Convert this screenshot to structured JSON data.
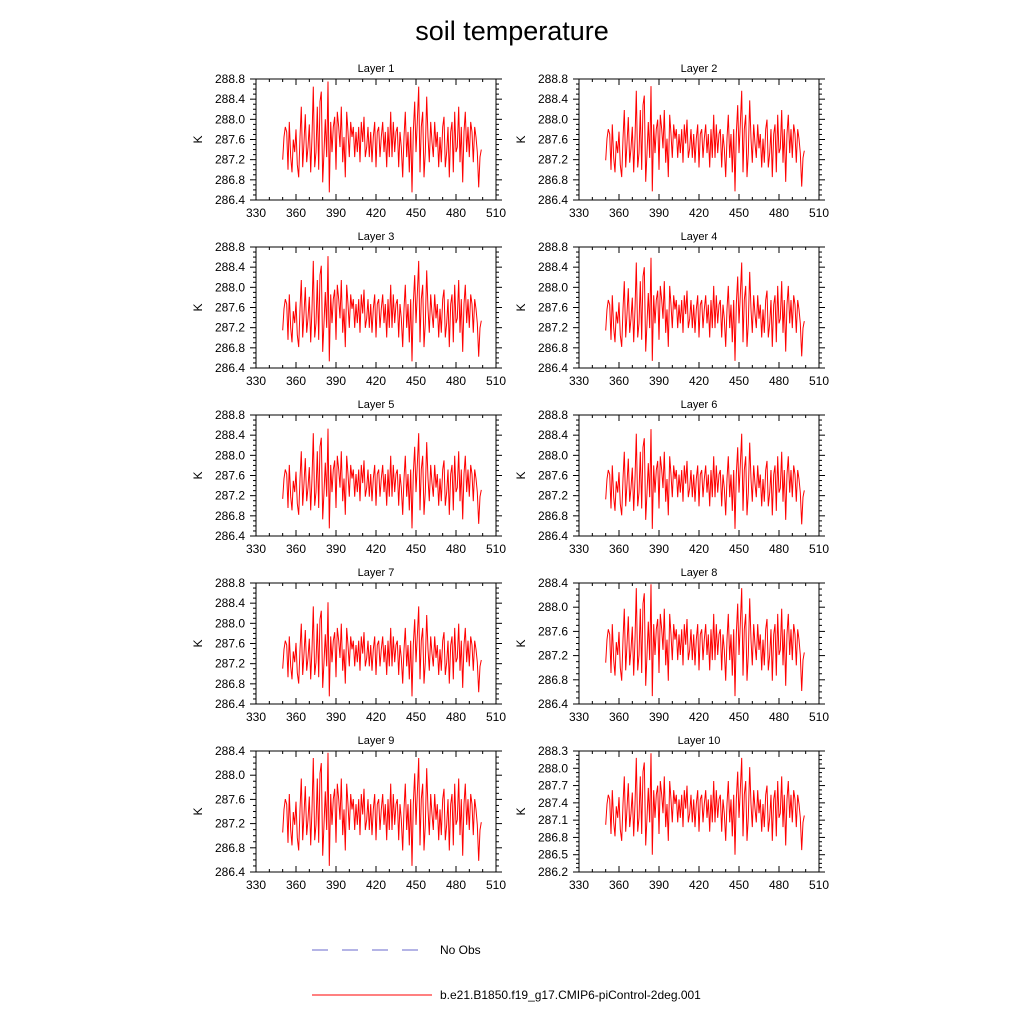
{
  "title": "soil temperature",
  "series_color": "#ff0000",
  "obs_color": "#6a6acd",
  "legend": {
    "obs_label": "No Obs",
    "model_label": "b.e21.B1850.f19_g17.CMIP6-piControl-2deg.001"
  },
  "chart_data": [
    {
      "type": "line",
      "title": "Layer 1",
      "ylabel": "K",
      "xlim": [
        330,
        510
      ],
      "ylim": [
        286.4,
        288.8
      ],
      "xticks": [
        330,
        360,
        390,
        420,
        450,
        480,
        510
      ],
      "yticks": [
        286.4,
        286.8,
        287.2,
        287.6,
        288.0,
        288.4,
        288.8
      ],
      "ytick_labels": [
        "286.4",
        "286.8",
        "287.2",
        "287.6",
        "288.0",
        "288.4",
        "288.8"
      ]
    },
    {
      "type": "line",
      "title": "Layer 2",
      "ylabel": "K",
      "xlim": [
        330,
        510
      ],
      "ylim": [
        286.4,
        288.8
      ],
      "xticks": [
        330,
        360,
        390,
        420,
        450,
        480,
        510
      ],
      "yticks": [
        286.4,
        286.8,
        287.2,
        287.6,
        288.0,
        288.4,
        288.8
      ],
      "ytick_labels": [
        "286.4",
        "286.8",
        "287.2",
        "287.6",
        "288.0",
        "288.4",
        "288.8"
      ]
    },
    {
      "type": "line",
      "title": "Layer 3",
      "ylabel": "K",
      "xlim": [
        330,
        510
      ],
      "ylim": [
        286.4,
        288.8
      ],
      "xticks": [
        330,
        360,
        390,
        420,
        450,
        480,
        510
      ],
      "yticks": [
        286.4,
        286.8,
        287.2,
        287.6,
        288.0,
        288.4,
        288.8
      ],
      "ytick_labels": [
        "286.4",
        "286.8",
        "287.2",
        "287.6",
        "288.0",
        "288.4",
        "288.8"
      ]
    },
    {
      "type": "line",
      "title": "Layer 4",
      "ylabel": "K",
      "xlim": [
        330,
        510
      ],
      "ylim": [
        286.4,
        288.8
      ],
      "xticks": [
        330,
        360,
        390,
        420,
        450,
        480,
        510
      ],
      "yticks": [
        286.4,
        286.8,
        287.2,
        287.6,
        288.0,
        288.4,
        288.8
      ],
      "ytick_labels": [
        "286.4",
        "286.8",
        "287.2",
        "287.6",
        "288.0",
        "288.4",
        "288.8"
      ]
    },
    {
      "type": "line",
      "title": "Layer 5",
      "ylabel": "K",
      "xlim": [
        330,
        510
      ],
      "ylim": [
        286.4,
        288.8
      ],
      "xticks": [
        330,
        360,
        390,
        420,
        450,
        480,
        510
      ],
      "yticks": [
        286.4,
        286.8,
        287.2,
        287.6,
        288.0,
        288.4,
        288.8
      ],
      "ytick_labels": [
        "286.4",
        "286.8",
        "287.2",
        "287.6",
        "288.0",
        "288.4",
        "288.8"
      ]
    },
    {
      "type": "line",
      "title": "Layer 6",
      "ylabel": "K",
      "xlim": [
        330,
        510
      ],
      "ylim": [
        286.4,
        288.8
      ],
      "xticks": [
        330,
        360,
        390,
        420,
        450,
        480,
        510
      ],
      "yticks": [
        286.4,
        286.8,
        287.2,
        287.6,
        288.0,
        288.4,
        288.8
      ],
      "ytick_labels": [
        "286.4",
        "286.8",
        "287.2",
        "287.6",
        "288.0",
        "288.4",
        "288.8"
      ]
    },
    {
      "type": "line",
      "title": "Layer 7",
      "ylabel": "K",
      "xlim": [
        330,
        510
      ],
      "ylim": [
        286.4,
        288.8
      ],
      "xticks": [
        330,
        360,
        390,
        420,
        450,
        480,
        510
      ],
      "yticks": [
        286.4,
        286.8,
        287.2,
        287.6,
        288.0,
        288.4,
        288.8
      ],
      "ytick_labels": [
        "286.4",
        "286.8",
        "287.2",
        "287.6",
        "288.0",
        "288.4",
        "288.8"
      ]
    },
    {
      "type": "line",
      "title": "Layer 8",
      "ylabel": "K",
      "xlim": [
        330,
        510
      ],
      "ylim": [
        286.4,
        288.4
      ],
      "xticks": [
        330,
        360,
        390,
        420,
        450,
        480,
        510
      ],
      "yticks": [
        286.4,
        286.8,
        287.2,
        287.6,
        288.0,
        288.4
      ],
      "ytick_labels": [
        "286.4",
        "286.8",
        "287.2",
        "287.6",
        "288.0",
        "288.4"
      ]
    },
    {
      "type": "line",
      "title": "Layer 9",
      "ylabel": "K",
      "xlim": [
        330,
        510
      ],
      "ylim": [
        286.4,
        288.4
      ],
      "xticks": [
        330,
        360,
        390,
        420,
        450,
        480,
        510
      ],
      "yticks": [
        286.4,
        286.8,
        287.2,
        287.6,
        288.0,
        288.4
      ],
      "ytick_labels": [
        "286.4",
        "286.8",
        "287.2",
        "287.6",
        "288.0",
        "288.4"
      ]
    },
    {
      "type": "line",
      "title": "Layer 10",
      "ylabel": "K",
      "xlim": [
        330,
        510
      ],
      "ylim": [
        286.2,
        288.3
      ],
      "xticks": [
        330,
        360,
        390,
        420,
        450,
        480,
        510
      ],
      "yticks": [
        286.2,
        286.5,
        286.8,
        287.1,
        287.4,
        287.7,
        288.0,
        288.3
      ],
      "ytick_labels": [
        "286.2",
        "286.5",
        "286.8",
        "287.1",
        "287.4",
        "287.7",
        "288.0",
        "288.3"
      ]
    }
  ],
  "series_shape": {
    "x_start": 350,
    "x_end": 499,
    "base_offsets": [
      -0.35,
      0.1,
      0.3,
      0.2,
      -0.55,
      0.4,
      -0.3,
      -0.6,
      0.05,
      -0.2,
      0.25,
      -0.45,
      -0.7,
      0.1,
      0.7,
      -0.5,
      0.0,
      0.55,
      -0.4,
      -0.1,
      0.35,
      -0.6,
      0.1,
      1.1,
      -0.5,
      -0.2,
      0.7,
      -0.55,
      0.8,
      1.0,
      -0.8,
      -0.2,
      0.45,
      -0.3,
      1.2,
      -1.0,
      0.4,
      -0.2,
      0.3,
      0.5,
      -0.55,
      0.6,
      0.3,
      -0.1,
      0.7,
      -0.4,
      0.1,
      -0.7,
      0.6,
      0.2,
      -0.3,
      0.4,
      0.1,
      0.3,
      -0.3,
      0.2,
      -0.2,
      0.3,
      -0.4,
      0.4,
      0.0,
      0.5,
      -0.3,
      -0.1,
      0.3,
      -0.3,
      0.2,
      -0.4,
      0.1,
      0.4,
      -0.5,
      0.2,
      0.3,
      -0.3,
      0.1,
      0.4,
      -0.2,
      0.2,
      -0.5,
      0.3,
      -0.3,
      0.6,
      -0.3,
      0.4,
      -0.2,
      0.2,
      0.3,
      -0.5,
      0.2,
      -0.1,
      -0.7,
      0.1,
      0.6,
      -0.3,
      0.2,
      -0.6,
      0.3,
      -1.0,
      0.2,
      0.8,
      -0.2,
      0.4,
      1.1,
      -0.6,
      0.3,
      0.6,
      -0.7,
      -0.2,
      0.9,
      0.1,
      -0.4,
      0.4,
      0.0,
      -0.3,
      0.4,
      -0.1,
      0.2,
      -0.5,
      0.1,
      -0.4,
      0.3,
      0.5,
      -0.5,
      -0.2,
      0.3,
      -0.7,
      0.2,
      0.4,
      -0.6,
      0.6,
      -0.2,
      -0.1,
      0.7,
      -0.4,
      0.3,
      -0.8,
      0.2,
      0.6,
      -0.2,
      0.3,
      -0.3,
      0.4,
      0.2,
      -0.4,
      0.3,
      0.1,
      -0.2,
      -0.9,
      -0.3,
      -0.15
    ],
    "layer_scale": [
      1.0,
      0.95,
      0.95,
      0.93,
      0.9,
      0.9,
      0.85,
      0.85,
      0.85,
      0.8
    ],
    "layer_mean": [
      287.55,
      287.52,
      287.48,
      287.47,
      287.45,
      287.44,
      287.4,
      287.38,
      287.35,
      287.3
    ]
  }
}
